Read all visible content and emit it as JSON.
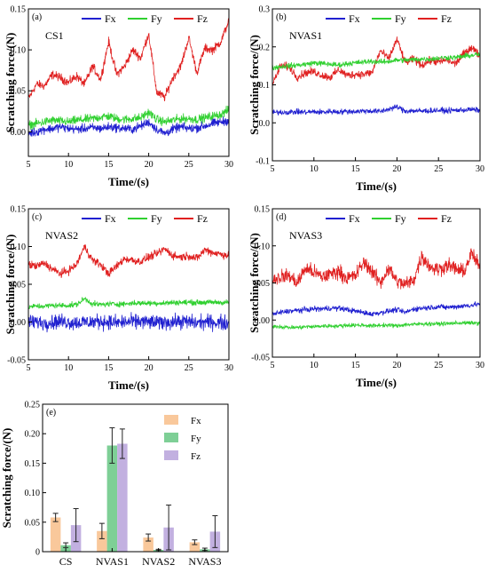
{
  "chart_data": [
    {
      "panel": "(a)",
      "type": "line",
      "sample": "CS1",
      "xlabel": "Time/(s)",
      "ylabel": "Scratching force/(N)",
      "xlim": [
        5,
        30
      ],
      "ylim": [
        -0.03,
        0.15
      ],
      "xticks": [
        "5",
        "10",
        "15",
        "20",
        "25",
        "30"
      ],
      "yticks": [
        "0.00",
        "0.05",
        "0.10",
        "0.15"
      ],
      "series": [
        {
          "name": "Fx",
          "color": "#2020d0",
          "noise": 0.006,
          "x": [
            5,
            6,
            7,
            8,
            9,
            10,
            11,
            12,
            13,
            14,
            15,
            16,
            17,
            18,
            19,
            20,
            21,
            22,
            23,
            24,
            25,
            26,
            27,
            28,
            29,
            30
          ],
          "y": [
            -0.002,
            0.0,
            0.003,
            0.004,
            0.006,
            0.004,
            0.003,
            0.004,
            0.005,
            0.004,
            0.006,
            0.005,
            0.004,
            0.003,
            0.007,
            0.012,
            0.003,
            -0.002,
            0.003,
            0.006,
            0.004,
            0.005,
            0.007,
            0.01,
            0.012,
            0.014
          ]
        },
        {
          "name": "Fy",
          "color": "#30d030",
          "noise": 0.006,
          "x": [
            5,
            6,
            7,
            8,
            9,
            10,
            11,
            12,
            13,
            14,
            15,
            16,
            17,
            18,
            19,
            20,
            21,
            22,
            23,
            24,
            25,
            26,
            27,
            28,
            29,
            30
          ],
          "y": [
            0.008,
            0.01,
            0.012,
            0.014,
            0.013,
            0.012,
            0.014,
            0.015,
            0.016,
            0.018,
            0.019,
            0.016,
            0.015,
            0.016,
            0.017,
            0.024,
            0.015,
            0.012,
            0.014,
            0.016,
            0.016,
            0.015,
            0.017,
            0.019,
            0.021,
            0.027
          ]
        },
        {
          "name": "Fz",
          "color": "#e02020",
          "noise": 0.006,
          "x": [
            5,
            6,
            7,
            8,
            9,
            10,
            11,
            12,
            13,
            14,
            15,
            16,
            17,
            18,
            19,
            20,
            21,
            22,
            23,
            24,
            25,
            26,
            27,
            28,
            29,
            30
          ],
          "y": [
            0.04,
            0.058,
            0.056,
            0.07,
            0.066,
            0.06,
            0.068,
            0.058,
            0.08,
            0.064,
            0.11,
            0.07,
            0.08,
            0.1,
            0.09,
            0.12,
            0.048,
            0.042,
            0.066,
            0.08,
            0.115,
            0.072,
            0.102,
            0.1,
            0.11,
            0.136
          ]
        }
      ]
    },
    {
      "panel": "(b)",
      "type": "line",
      "sample": "NVAS1",
      "xlabel": "Time/(s)",
      "ylabel": "Scratching force/(N)",
      "xlim": [
        5,
        30
      ],
      "ylim": [
        -0.1,
        0.3
      ],
      "xticks": [
        "5",
        "10",
        "15",
        "20",
        "25",
        "30"
      ],
      "yticks": [
        "-0.1",
        "0.0",
        "0.1",
        "0.2",
        "0.3"
      ],
      "series": [
        {
          "name": "Fx",
          "color": "#2020d0",
          "noise": 0.008,
          "x": [
            5,
            6,
            7,
            8,
            9,
            10,
            11,
            12,
            13,
            14,
            15,
            16,
            17,
            18,
            19,
            20,
            21,
            22,
            23,
            24,
            25,
            26,
            27,
            28,
            29,
            30
          ],
          "y": [
            0.027,
            0.028,
            0.028,
            0.029,
            0.028,
            0.029,
            0.028,
            0.03,
            0.029,
            0.03,
            0.03,
            0.031,
            0.031,
            0.03,
            0.036,
            0.042,
            0.031,
            0.032,
            0.031,
            0.032,
            0.033,
            0.032,
            0.033,
            0.034,
            0.035,
            0.033
          ]
        },
        {
          "name": "Fy",
          "color": "#30d030",
          "noise": 0.008,
          "x": [
            5,
            6,
            7,
            8,
            9,
            10,
            11,
            12,
            13,
            14,
            15,
            16,
            17,
            18,
            19,
            20,
            21,
            22,
            23,
            24,
            25,
            26,
            27,
            28,
            29,
            30
          ],
          "y": [
            0.145,
            0.148,
            0.15,
            0.152,
            0.154,
            0.158,
            0.156,
            0.154,
            0.152,
            0.156,
            0.158,
            0.16,
            0.162,
            0.16,
            0.162,
            0.165,
            0.165,
            0.166,
            0.168,
            0.168,
            0.17,
            0.172,
            0.172,
            0.175,
            0.178,
            0.18
          ]
        },
        {
          "name": "Fz",
          "color": "#e02020",
          "noise": 0.012,
          "x": [
            5,
            6,
            7,
            8,
            9,
            10,
            11,
            12,
            13,
            14,
            15,
            16,
            17,
            18,
            19,
            20,
            21,
            22,
            23,
            24,
            25,
            26,
            27,
            28,
            29,
            30
          ],
          "y": [
            0.1,
            0.15,
            0.148,
            0.12,
            0.132,
            0.135,
            0.125,
            0.12,
            0.14,
            0.125,
            0.128,
            0.128,
            0.132,
            0.19,
            0.168,
            0.22,
            0.158,
            0.168,
            0.152,
            0.164,
            0.16,
            0.166,
            0.155,
            0.18,
            0.2,
            0.175
          ]
        }
      ]
    },
    {
      "panel": "(c)",
      "type": "line",
      "sample": "NVAS2",
      "xlabel": "Time/(s)",
      "ylabel": "Scratching force/(N)",
      "xlim": [
        5,
        30
      ],
      "ylim": [
        -0.05,
        0.15
      ],
      "xticks": [
        "5",
        "10",
        "15",
        "20",
        "25",
        "30"
      ],
      "yticks": [
        "-0.05",
        "0.00",
        "0.05",
        "0.10",
        "0.15"
      ],
      "series": [
        {
          "name": "Fx",
          "color": "#2020d0",
          "noise": 0.011,
          "x": [
            5,
            6,
            7,
            8,
            9,
            10,
            11,
            12,
            13,
            14,
            15,
            16,
            17,
            18,
            19,
            20,
            21,
            22,
            23,
            24,
            25,
            26,
            27,
            28,
            29,
            30
          ],
          "y": [
            0.0,
            0.0,
            -0.001,
            0.0,
            0.001,
            0.0,
            -0.001,
            0.0,
            0.0,
            0.001,
            0.0,
            -0.001,
            0.0,
            0.0,
            0.001,
            0.0,
            -0.001,
            0.0,
            0.0,
            0.001,
            0.0,
            -0.001,
            0.0,
            0.0,
            -0.001,
            -0.002
          ]
        },
        {
          "name": "Fy",
          "color": "#30d030",
          "noise": 0.004,
          "x": [
            5,
            6,
            7,
            8,
            9,
            10,
            11,
            12,
            13,
            14,
            15,
            16,
            17,
            18,
            19,
            20,
            21,
            22,
            23,
            24,
            25,
            26,
            27,
            28,
            29,
            30
          ],
          "y": [
            0.02,
            0.021,
            0.021,
            0.022,
            0.022,
            0.022,
            0.023,
            0.031,
            0.024,
            0.023,
            0.024,
            0.024,
            0.024,
            0.025,
            0.025,
            0.025,
            0.025,
            0.025,
            0.026,
            0.026,
            0.026,
            0.026,
            0.026,
            0.026,
            0.026,
            0.026
          ]
        },
        {
          "name": "Fz",
          "color": "#e02020",
          "noise": 0.006,
          "x": [
            5,
            6,
            7,
            8,
            9,
            10,
            11,
            12,
            13,
            14,
            15,
            16,
            17,
            18,
            19,
            20,
            21,
            22,
            23,
            24,
            25,
            26,
            27,
            28,
            29,
            30
          ],
          "y": [
            0.076,
            0.074,
            0.078,
            0.07,
            0.064,
            0.068,
            0.076,
            0.1,
            0.082,
            0.076,
            0.064,
            0.074,
            0.084,
            0.082,
            0.08,
            0.086,
            0.09,
            0.097,
            0.088,
            0.086,
            0.088,
            0.084,
            0.096,
            0.092,
            0.09,
            0.088
          ]
        }
      ]
    },
    {
      "panel": "(d)",
      "type": "line",
      "sample": "NVAS3",
      "xlabel": "Time/(s)",
      "ylabel": "Scratching force/(N)",
      "xlim": [
        5,
        30
      ],
      "ylim": [
        -0.05,
        0.15
      ],
      "xticks": [
        "5",
        "10",
        "15",
        "20",
        "25",
        "30"
      ],
      "yticks": [
        "-0.05",
        "0.00",
        "0.05",
        "0.10",
        "0.15"
      ],
      "series": [
        {
          "name": "Fx",
          "color": "#2020d0",
          "noise": 0.004,
          "x": [
            5,
            6,
            7,
            8,
            9,
            10,
            11,
            12,
            13,
            14,
            15,
            16,
            17,
            18,
            19,
            20,
            21,
            22,
            23,
            24,
            25,
            26,
            27,
            28,
            29,
            30
          ],
          "y": [
            0.008,
            0.01,
            0.012,
            0.013,
            0.014,
            0.015,
            0.015,
            0.016,
            0.016,
            0.014,
            0.012,
            0.01,
            0.008,
            0.01,
            0.012,
            0.014,
            0.01,
            0.015,
            0.016,
            0.017,
            0.018,
            0.017,
            0.018,
            0.019,
            0.02,
            0.022
          ]
        },
        {
          "name": "Fy",
          "color": "#30d030",
          "noise": 0.003,
          "x": [
            5,
            6,
            7,
            8,
            9,
            10,
            11,
            12,
            13,
            14,
            15,
            16,
            17,
            18,
            19,
            20,
            21,
            22,
            23,
            24,
            25,
            26,
            27,
            28,
            29,
            30
          ],
          "y": [
            -0.008,
            -0.009,
            -0.01,
            -0.01,
            -0.009,
            -0.009,
            -0.008,
            -0.008,
            -0.008,
            -0.007,
            -0.007,
            -0.007,
            -0.008,
            -0.007,
            -0.007,
            -0.008,
            -0.006,
            -0.006,
            -0.005,
            -0.005,
            -0.005,
            -0.005,
            -0.004,
            -0.004,
            -0.004,
            -0.004
          ]
        },
        {
          "name": "Fz",
          "color": "#e02020",
          "noise": 0.011,
          "x": [
            5,
            6,
            7,
            8,
            9,
            10,
            11,
            12,
            13,
            14,
            15,
            16,
            17,
            18,
            19,
            20,
            21,
            22,
            23,
            24,
            25,
            26,
            27,
            28,
            29,
            30
          ],
          "y": [
            0.055,
            0.058,
            0.06,
            0.05,
            0.07,
            0.064,
            0.058,
            0.062,
            0.066,
            0.056,
            0.06,
            0.078,
            0.066,
            0.05,
            0.07,
            0.052,
            0.048,
            0.054,
            0.086,
            0.072,
            0.068,
            0.074,
            0.07,
            0.064,
            0.09,
            0.07
          ]
        }
      ]
    },
    {
      "panel": "(e)",
      "type": "bar",
      "ylabel": "Scratching force/(N)",
      "ylim": [
        0,
        0.25
      ],
      "yticks": [
        "0",
        "0.05",
        "0.10",
        "0.15",
        "0.20",
        "0.25"
      ],
      "categories": [
        "CS",
        "NVAS1",
        "NVAS2",
        "NVAS3"
      ],
      "series": [
        {
          "name": "Fx",
          "color": "#f9c89b",
          "values": [
            0.058,
            0.035,
            0.024,
            0.016
          ],
          "errors": [
            0.007,
            0.013,
            0.006,
            0.004
          ]
        },
        {
          "name": "Fy",
          "color": "#7ecf96",
          "values": [
            0.011,
            0.18,
            0.003,
            0.004
          ],
          "errors": [
            0.004,
            0.03,
            0.001,
            0.002
          ]
        },
        {
          "name": "Fz",
          "color": "#c2b0e0",
          "values": [
            0.045,
            0.183,
            0.041,
            0.034
          ],
          "errors": [
            0.028,
            0.025,
            0.038,
            0.027
          ]
        }
      ]
    }
  ]
}
